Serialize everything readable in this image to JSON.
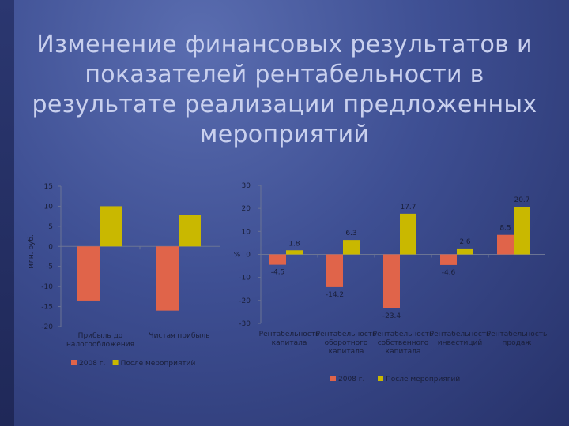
{
  "slide": {
    "title": "Изменение финансовых результатов и показателей рентабельности в результате реализации предложенных мероприятий"
  },
  "colors": {
    "series_2008": "#e0644a",
    "series_after": "#c9b800",
    "axis": "#6b7494"
  },
  "chart_data": [
    {
      "type": "bar",
      "title": "",
      "xlabel": "",
      "ylabel": "млн. руб.",
      "ylim": [
        -20,
        15
      ],
      "yticks": [
        15,
        10,
        5,
        0,
        -5,
        -10,
        -15,
        -20
      ],
      "categories": [
        "Прибыль до налогообложения",
        "Чистая прибыль"
      ],
      "series": [
        {
          "name": "2008 г.",
          "values": [
            -13.5,
            -16
          ]
        },
        {
          "name": "После мероприятий",
          "values": [
            10,
            7.8
          ]
        }
      ],
      "grid": false,
      "legend": "bottom"
    },
    {
      "type": "bar",
      "title": "",
      "xlabel": "",
      "ylabel": "%",
      "ylim": [
        -30,
        30
      ],
      "yticks": [
        30,
        20,
        10,
        0,
        -10,
        -20,
        -30
      ],
      "categories": [
        "Рентабельность капитала",
        "Рентабельность оборотного капитала",
        "Рентабельность собственного капитала",
        "Рентабельность инвестиций",
        "Рентабельность продаж"
      ],
      "series": [
        {
          "name": "2008 г.",
          "values": [
            -4.5,
            -14.2,
            -23.4,
            -4.6,
            8.5
          ]
        },
        {
          "name": "После мероприягий",
          "values": [
            1.8,
            6.3,
            17.7,
            2.6,
            20.7
          ]
        }
      ],
      "data_labels": {
        "2008 г.": [
          "-4.5",
          "-14.2",
          "-23.4",
          "-4.6",
          "8.5"
        ],
        "После мероприягий": [
          "1.8",
          "6.3",
          "17.7",
          "2.6",
          "20.7"
        ]
      },
      "grid": false,
      "legend": "bottom"
    }
  ]
}
